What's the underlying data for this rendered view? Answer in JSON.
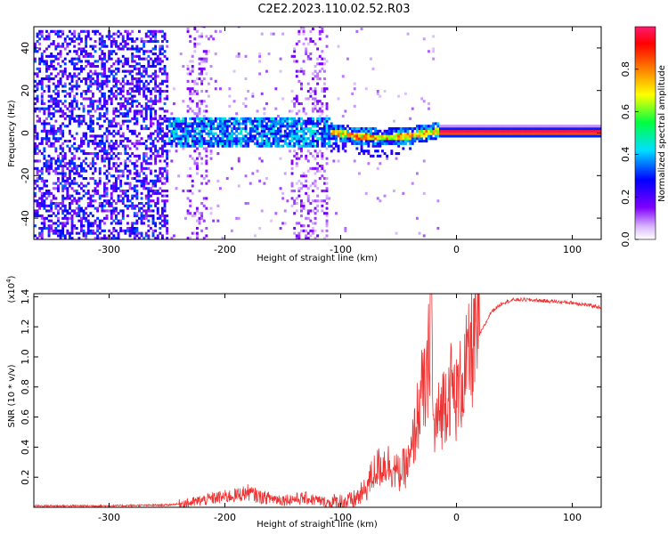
{
  "title": "C2E2.2023.110.02.52.R03",
  "chart_data": [
    {
      "type": "heatmap",
      "xlabel": "Height of straight line (km)",
      "ylabel": "Frequency (Hz)",
      "xlim": [
        -365,
        125
      ],
      "ylim": [
        -50,
        50
      ],
      "x_ticks": [
        -300,
        -200,
        -100,
        0,
        100
      ],
      "y_ticks": [
        -40,
        -20,
        0,
        20,
        40
      ],
      "colorbar": {
        "label": "Normalized spectral amplitude",
        "range": [
          0.0,
          1.0
        ],
        "ticks": [
          0.0,
          0.2,
          0.4,
          0.6,
          0.8
        ],
        "colors": [
          "#ffffff",
          "#d9b8ff",
          "#7f00ff",
          "#0000ff",
          "#00e0ff",
          "#00ff40",
          "#ffff00",
          "#ff8000",
          "#ff0000",
          "#ff1a6e"
        ]
      },
      "regions": [
        {
          "x": [
            -365,
            -250
          ],
          "freq": [
            -50,
            48
          ],
          "amplitude": 0.3
        },
        {
          "x": [
            -250,
            -110
          ],
          "freq": [
            -8,
            8
          ],
          "amplitude": 0.45
        },
        {
          "x": [
            -110,
            -20
          ],
          "freq": [
            -4,
            4
          ],
          "amplitude": 0.7
        },
        {
          "x": [
            -20,
            125
          ],
          "freq": [
            -0.6,
            0.6
          ],
          "amplitude": 0.95
        }
      ]
    },
    {
      "type": "line",
      "xlabel": "Height of straight line (km)",
      "ylabel": "SNR (10 * v/v)",
      "y_multiplier": "(x10",
      "y_multiplier_exp": "4",
      "y_multiplier_close": ")",
      "xlim": [
        -365,
        125
      ],
      "ylim": [
        0,
        1.42
      ],
      "x_ticks": [
        -300,
        -200,
        -100,
        0,
        100
      ],
      "y_ticks": [
        0.2,
        0.4,
        0.6,
        0.8,
        1.0,
        1.2,
        1.4
      ],
      "color": "#ee3333",
      "series": [
        {
          "x": [
            -365,
            -300,
            -250,
            -230,
            -210,
            -190,
            -180,
            -170,
            -150,
            -130,
            -110,
            -90,
            -80,
            -70,
            -60,
            -50,
            -40,
            -35,
            -30,
            -25,
            -22,
            -20,
            -15,
            -10,
            -5,
            0,
            5,
            10,
            15,
            20,
            25,
            30,
            40,
            50,
            60,
            80,
            100,
            125
          ],
          "y": [
            0.01,
            0.01,
            0.015,
            0.03,
            0.06,
            0.08,
            0.1,
            0.07,
            0.05,
            0.06,
            0.03,
            0.04,
            0.1,
            0.25,
            0.3,
            0.22,
            0.3,
            0.55,
            0.75,
            0.8,
            1.42,
            0.5,
            0.6,
            0.72,
            0.8,
            0.72,
            0.85,
            0.95,
            1.1,
            1.15,
            1.22,
            1.3,
            1.36,
            1.38,
            1.38,
            1.37,
            1.36,
            1.33
          ]
        }
      ]
    }
  ]
}
